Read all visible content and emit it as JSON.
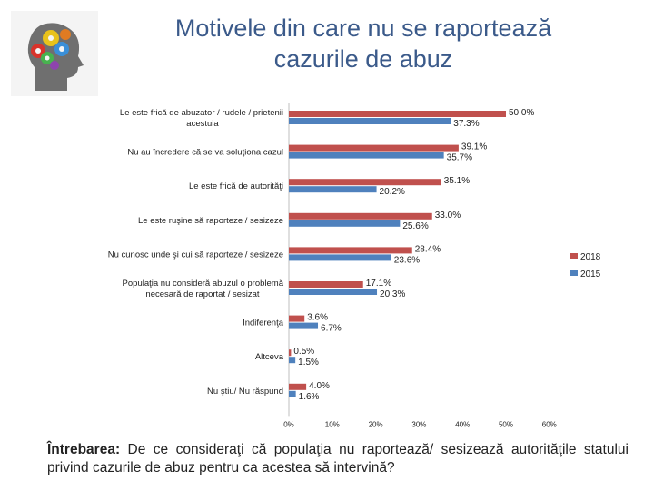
{
  "title_line1": "Motivele din care nu se raportează",
  "title_line2": "cazurile de abuz",
  "question": {
    "label": "Întrebarea:",
    "text": " De ce consideraţi că populaţia nu raportează/ sesizează autorităţile statului privind cazurile de abuz pentru ca acestea să intervină?"
  },
  "colors": {
    "2018": "#c0504d",
    "2015": "#4f81bd",
    "title": "#3b5a8a"
  },
  "chart_data": {
    "type": "bar",
    "orientation": "horizontal",
    "categories": [
      "Le este frică de abuzator / rudele / prietenii acestuia",
      "Nu au încredere că se va soluţiona cazul",
      "Le este frică de autorităţi",
      "Le este ruşine să raporteze / sesizeze",
      "Nu cunosc unde şi cui să raporteze / sesizeze",
      "Populaţia nu consideră abuzul o problemă necesară de raportat / sesizat",
      "Indiferenţa",
      "Altceva",
      "Nu ştiu/ Nu răspund"
    ],
    "series": [
      {
        "name": "2018",
        "values": [
          50.0,
          39.1,
          35.1,
          33.0,
          28.4,
          17.1,
          3.6,
          0.5,
          4.0
        ],
        "labels": [
          "50.0%",
          "39.1%",
          "35.1%",
          "33.0%",
          "28.4%",
          "17.1%",
          "3.6%",
          "0.5%",
          "4.0%"
        ]
      },
      {
        "name": "2015",
        "values": [
          37.3,
          35.7,
          20.2,
          25.6,
          23.6,
          20.3,
          6.7,
          1.5,
          1.6
        ],
        "labels": [
          "37.3%",
          "35.7%",
          "20.2%",
          "25.6%",
          "23.6%",
          "20.3%",
          "6.7%",
          "1.5%",
          "1.6%"
        ]
      }
    ],
    "xlim": [
      0,
      60
    ],
    "x_ticks": [
      "0%",
      "10%",
      "20%",
      "30%",
      "40%",
      "50%",
      "60%"
    ],
    "grid": false,
    "legend_position": "right"
  }
}
